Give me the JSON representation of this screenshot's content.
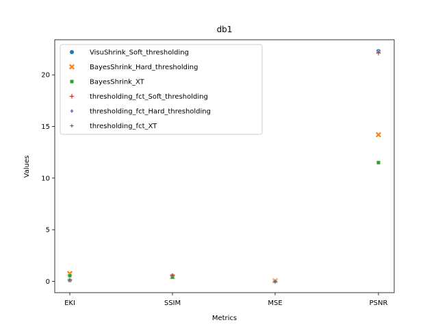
{
  "chart_data": {
    "type": "scatter",
    "title": "db1",
    "xlabel": "Metrics",
    "ylabel": "Values",
    "categories": [
      "EKI",
      "SSIM",
      "MSE",
      "PSNR"
    ],
    "yticks": [
      0,
      5,
      10,
      15,
      20
    ],
    "ylim": [
      -1.1,
      23.4
    ],
    "legend_position": "upper-left",
    "grid": false,
    "series": [
      {
        "name": "VisuShrink_Soft_thresholding",
        "marker": "circle",
        "color": "#1f77b4",
        "values": [
          0.1,
          0.55,
          0.02,
          22.3
        ]
      },
      {
        "name": "BayesShrink_Hard_thresholding",
        "marker": "x",
        "color": "#ff7f0e",
        "values": [
          0.75,
          0.45,
          0.05,
          14.2
        ]
      },
      {
        "name": "BayesShrink_XT",
        "marker": "square",
        "color": "#2ca02c",
        "values": [
          0.55,
          0.4,
          0.03,
          11.5
        ]
      },
      {
        "name": "thresholding_fct_Soft_thresholding",
        "marker": "plus",
        "color": "#d62728",
        "values": [
          0.15,
          0.55,
          0.0,
          22.1
        ]
      },
      {
        "name": "thresholding_fct_Hard_thresholding",
        "marker": "diamond",
        "color": "#9467bd",
        "values": [
          0.12,
          0.6,
          0.02,
          22.2
        ]
      },
      {
        "name": "thresholding_fct_XT",
        "marker": "star",
        "color": "#8c564b",
        "values": [
          0.12,
          0.55,
          -0.05,
          22.15
        ]
      }
    ]
  }
}
